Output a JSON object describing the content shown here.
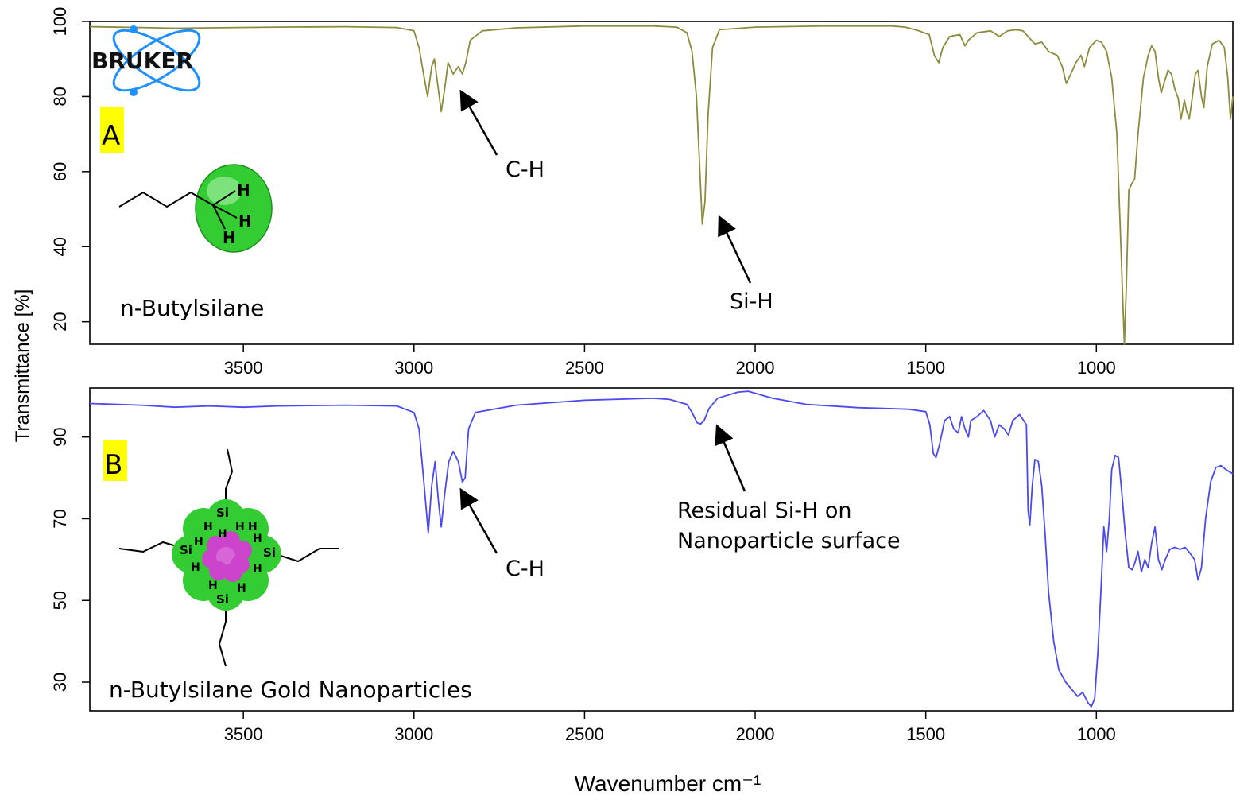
{
  "colors": {
    "panel_a_line": "#8c8c3c",
    "panel_b_line": "#4a4af0",
    "label_highlight": "#ffff00",
    "molecule_green": "#33cc33",
    "gold_cluster": "#cc44cc",
    "logo_blue": "#1e90ff"
  },
  "logo": {
    "text": "BRUKER",
    "icon": "atom-orbit-icon"
  },
  "y_axis_title": "Transmittance [%]",
  "x_axis_title": "Wavenumber cm⁻¹",
  "chart_data": [
    {
      "type": "line",
      "panel_label": "A",
      "compound_label": "n-Butylsilane",
      "xlim": [
        3950,
        600
      ],
      "x_reversed": true,
      "ylim": [
        14,
        100
      ],
      "x_ticks": [
        3500,
        3000,
        2500,
        2000,
        1500,
        1000
      ],
      "y_ticks": [
        20,
        40,
        60,
        80,
        100
      ],
      "annotations": [
        {
          "text": "C-H",
          "x": 2925,
          "y": 80.5
        },
        {
          "text": "Si-H",
          "x": 2155,
          "y": 45.5
        }
      ],
      "series": [
        {
          "color": "#8c8c3c",
          "points": [
            [
              3950,
              98.6
            ],
            [
              3800,
              98.4
            ],
            [
              3700,
              98.2
            ],
            [
              3600,
              98.3
            ],
            [
              3400,
              98.5
            ],
            [
              3200,
              98.6
            ],
            [
              3050,
              98.4
            ],
            [
              3000,
              97.5
            ],
            [
              2985,
              93
            ],
            [
              2970,
              85
            ],
            [
              2960,
              80
            ],
            [
              2948,
              88
            ],
            [
              2940,
              90
            ],
            [
              2930,
              83
            ],
            [
              2920,
              76
            ],
            [
              2910,
              82
            ],
            [
              2900,
              89
            ],
            [
              2885,
              86
            ],
            [
              2870,
              88
            ],
            [
              2858,
              86
            ],
            [
              2848,
              89
            ],
            [
              2835,
              95
            ],
            [
              2800,
              97.5
            ],
            [
              2700,
              98.3
            ],
            [
              2500,
              98.8
            ],
            [
              2300,
              98.8
            ],
            [
              2230,
              98.5
            ],
            [
              2200,
              97
            ],
            [
              2185,
              92
            ],
            [
              2172,
              80
            ],
            [
              2163,
              62
            ],
            [
              2155,
              46
            ],
            [
              2147,
              52
            ],
            [
              2138,
              75
            ],
            [
              2125,
              93
            ],
            [
              2105,
              97.8
            ],
            [
              2000,
              98.5
            ],
            [
              1800,
              98.8
            ],
            [
              1600,
              98.8
            ],
            [
              1560,
              98.5
            ],
            [
              1520,
              97.5
            ],
            [
              1490,
              96.5
            ],
            [
              1475,
              91
            ],
            [
              1462,
              89
            ],
            [
              1450,
              93
            ],
            [
              1430,
              96
            ],
            [
              1400,
              96.5
            ],
            [
              1385,
              93.5
            ],
            [
              1375,
              95
            ],
            [
              1350,
              97
            ],
            [
              1310,
              97.5
            ],
            [
              1285,
              96
            ],
            [
              1260,
              97.5
            ],
            [
              1235,
              97.8
            ],
            [
              1215,
              97.5
            ],
            [
              1200,
              96
            ],
            [
              1180,
              94
            ],
            [
              1160,
              94.5
            ],
            [
              1140,
              92
            ],
            [
              1115,
              91
            ],
            [
              1100,
              88
            ],
            [
              1088,
              83.5
            ],
            [
              1075,
              86
            ],
            [
              1060,
              89
            ],
            [
              1045,
              91
            ],
            [
              1035,
              88
            ],
            [
              1020,
              93
            ],
            [
              1000,
              95
            ],
            [
              985,
              94.5
            ],
            [
              970,
              92
            ],
            [
              955,
              85
            ],
            [
              940,
              70
            ],
            [
              928,
              40
            ],
            [
              918,
              14
            ],
            [
              912,
              30
            ],
            [
              905,
              55
            ],
            [
              895,
              57
            ],
            [
              888,
              58
            ],
            [
              878,
              70
            ],
            [
              862,
              85
            ],
            [
              848,
              91
            ],
            [
              838,
              93.5
            ],
            [
              828,
              92
            ],
            [
              818,
              85
            ],
            [
              810,
              81
            ],
            [
              800,
              84
            ],
            [
              790,
              87
            ],
            [
              780,
              86
            ],
            [
              770,
              82
            ],
            [
              760,
              79.5
            ],
            [
              752,
              74
            ],
            [
              742,
              79
            ],
            [
              735,
              76
            ],
            [
              728,
              74
            ],
            [
              720,
              79
            ],
            [
              710,
              86
            ],
            [
              702,
              87
            ],
            [
              692,
              80
            ],
            [
              685,
              77
            ],
            [
              675,
              88
            ],
            [
              660,
              94
            ],
            [
              640,
              95
            ],
            [
              625,
              93
            ],
            [
              615,
              85
            ],
            [
              607,
              74
            ],
            [
              600,
              80
            ]
          ]
        }
      ]
    },
    {
      "type": "line",
      "panel_label": "B",
      "compound_label": "n-Butylsilane Gold Nanoparticles",
      "xlim": [
        3950,
        600
      ],
      "x_reversed": true,
      "ylim": [
        23,
        102
      ],
      "x_ticks": [
        3500,
        3000,
        2500,
        2000,
        1500,
        1000
      ],
      "y_ticks": [
        30,
        50,
        70,
        90
      ],
      "annotations": [
        {
          "text": "C-H",
          "x": 2905,
          "y": 68
        },
        {
          "text": "Residual Si-H on",
          "x": 2155,
          "y": 93
        },
        {
          "text": "Nanoparticle surface",
          "x": 2155,
          "y": 93
        }
      ],
      "series": [
        {
          "color": "#4a4af0",
          "points": [
            [
              3950,
              98.2
            ],
            [
              3800,
              97.8
            ],
            [
              3700,
              97.3
            ],
            [
              3600,
              97.6
            ],
            [
              3500,
              97.3
            ],
            [
              3400,
              97.6
            ],
            [
              3200,
              97.8
            ],
            [
              3050,
              97.6
            ],
            [
              3000,
              96
            ],
            [
              2985,
              92
            ],
            [
              2970,
              78
            ],
            [
              2958,
              66.5
            ],
            [
              2948,
              78
            ],
            [
              2938,
              84
            ],
            [
              2928,
              74
            ],
            [
              2920,
              68
            ],
            [
              2910,
              76
            ],
            [
              2898,
              84
            ],
            [
              2885,
              86.5
            ],
            [
              2870,
              84
            ],
            [
              2858,
              79
            ],
            [
              2850,
              80
            ],
            [
              2840,
              92
            ],
            [
              2820,
              96
            ],
            [
              2700,
              97.8
            ],
            [
              2500,
              99
            ],
            [
              2300,
              99.5
            ],
            [
              2250,
              99.2
            ],
            [
              2200,
              98
            ],
            [
              2185,
              96
            ],
            [
              2170,
              93.5
            ],
            [
              2160,
              93.2
            ],
            [
              2150,
              94
            ],
            [
              2135,
              97
            ],
            [
              2110,
              99.5
            ],
            [
              2050,
              101
            ],
            [
              2020,
              101.2
            ],
            [
              1950,
              99.5
            ],
            [
              1850,
              98
            ],
            [
              1700,
              97.2
            ],
            [
              1550,
              96.8
            ],
            [
              1500,
              96.2
            ],
            [
              1488,
              93
            ],
            [
              1478,
              86
            ],
            [
              1470,
              85
            ],
            [
              1460,
              88
            ],
            [
              1445,
              94
            ],
            [
              1430,
              95
            ],
            [
              1418,
              92
            ],
            [
              1405,
              91
            ],
            [
              1395,
              95
            ],
            [
              1385,
              92
            ],
            [
              1375,
              90
            ],
            [
              1368,
              94
            ],
            [
              1350,
              95
            ],
            [
              1330,
              96.5
            ],
            [
              1310,
              94
            ],
            [
              1298,
              90
            ],
            [
              1285,
              93
            ],
            [
              1270,
              92
            ],
            [
              1258,
              90.5
            ],
            [
              1245,
              94
            ],
            [
              1225,
              95.5
            ],
            [
              1205,
              93
            ],
            [
              1200,
              72
            ],
            [
              1195,
              68.5
            ],
            [
              1188,
              78
            ],
            [
              1180,
              84.5
            ],
            [
              1170,
              84
            ],
            [
              1160,
              78
            ],
            [
              1150,
              66
            ],
            [
              1140,
              52
            ],
            [
              1125,
              40
            ],
            [
              1110,
              33
            ],
            [
              1090,
              30
            ],
            [
              1070,
              28
            ],
            [
              1055,
              26.5
            ],
            [
              1040,
              27.5
            ],
            [
              1025,
              25
            ],
            [
              1015,
              24
            ],
            [
              1005,
              26
            ],
            [
              995,
              38
            ],
            [
              985,
              55
            ],
            [
              978,
              68
            ],
            [
              970,
              62
            ],
            [
              962,
              70
            ],
            [
              955,
              82
            ],
            [
              945,
              85.5
            ],
            [
              935,
              85
            ],
            [
              925,
              76
            ],
            [
              915,
              66
            ],
            [
              905,
              58
            ],
            [
              895,
              57.5
            ],
            [
              888,
              59
            ],
            [
              878,
              62
            ],
            [
              868,
              57
            ],
            [
              858,
              60
            ],
            [
              848,
              58
            ],
            [
              838,
              64
            ],
            [
              828,
              68
            ],
            [
              818,
              60
            ],
            [
              808,
              57.5
            ],
            [
              798,
              60
            ],
            [
              785,
              62.5
            ],
            [
              770,
              63
            ],
            [
              755,
              62.5
            ],
            [
              740,
              63
            ],
            [
              725,
              61.5
            ],
            [
              712,
              60
            ],
            [
              702,
              55
            ],
            [
              692,
              58
            ],
            [
              680,
              70
            ],
            [
              665,
              79
            ],
            [
              650,
              82.5
            ],
            [
              635,
              83
            ],
            [
              620,
              82
            ],
            [
              600,
              81
            ]
          ]
        }
      ]
    }
  ]
}
